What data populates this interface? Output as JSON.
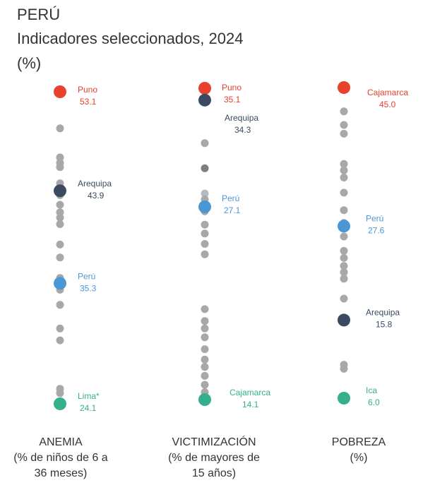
{
  "header": {
    "country": "PERÚ",
    "subtitle": "Indicadores seleccionados, 2024",
    "unit": "(%)"
  },
  "colors": {
    "max": "#e8412c",
    "region_ref": "#3c4a61",
    "national": "#4a97d6",
    "min": "#34b08c",
    "other": "#a8a8a8",
    "other_dark": "#7f7f7f",
    "other_light": "#b5b9c0"
  },
  "chart_data": {
    "type": "scatter",
    "title": "PERÚ — Indicadores seleccionados, 2024 (%)",
    "columns": [
      {
        "key": "anemia",
        "name": "ANEMIA",
        "subtitle": [
          "(% de niños de 6 a",
          "36 meses)"
        ],
        "range": [
          24.1,
          53.1
        ],
        "highlights": [
          {
            "label": "Puno",
            "value": 53.1,
            "role": "max"
          },
          {
            "label": "Arequipa",
            "value": 43.9,
            "role": "region_ref"
          },
          {
            "label": "Perú",
            "value": 35.3,
            "role": "national"
          },
          {
            "label": "Lima*",
            "value": 24.1,
            "role": "min"
          }
        ],
        "others": [
          49.7,
          47.0,
          46.5,
          46.1,
          44.6,
          43.5,
          42.6,
          41.9,
          41.4,
          40.8,
          38.9,
          37.7,
          35.8,
          34.7,
          33.3,
          31.1,
          30.0,
          25.5,
          25.1
        ]
      },
      {
        "key": "victimizacion",
        "name": "VICTIMIZACIÓN",
        "subtitle": [
          "(% de mayores de",
          "15 años)"
        ],
        "range": [
          14.1,
          35.1
        ],
        "highlights": [
          {
            "label": "Puno",
            "value": 35.1,
            "role": "max"
          },
          {
            "label": "Arequipa",
            "value": 34.3,
            "role": "region_ref"
          },
          {
            "label": "Perú",
            "value": 27.1,
            "role": "national"
          },
          {
            "label": "Cajamarca",
            "value": 14.1,
            "role": "min"
          }
        ],
        "others": [
          31.4,
          29.7,
          28.0,
          27.6,
          26.8,
          25.9,
          25.3,
          24.6,
          23.9,
          20.2,
          19.4,
          18.9,
          18.3,
          17.5,
          16.8,
          16.3,
          15.7,
          15.1,
          14.6
        ],
        "others_dark": [
          29.7
        ],
        "others_light": [
          28.0
        ]
      },
      {
        "key": "pobreza",
        "name": "POBREZA",
        "subtitle": [
          "(%)"
        ],
        "range": [
          6.0,
          45.0
        ],
        "highlights": [
          {
            "label": "Cajamarca",
            "value": 45.0,
            "role": "max"
          },
          {
            "label": "Perú",
            "value": 27.6,
            "role": "national"
          },
          {
            "label": "Arequipa",
            "value": 15.8,
            "role": "region_ref"
          },
          {
            "label": "Ica",
            "value": 6.0,
            "role": "min"
          }
        ],
        "others": [
          42.0,
          40.3,
          39.2,
          35.4,
          34.6,
          33.7,
          31.8,
          29.6,
          28.0,
          26.3,
          24.5,
          23.6,
          22.6,
          21.8,
          21.0,
          18.5,
          10.2,
          9.7
        ]
      }
    ]
  }
}
